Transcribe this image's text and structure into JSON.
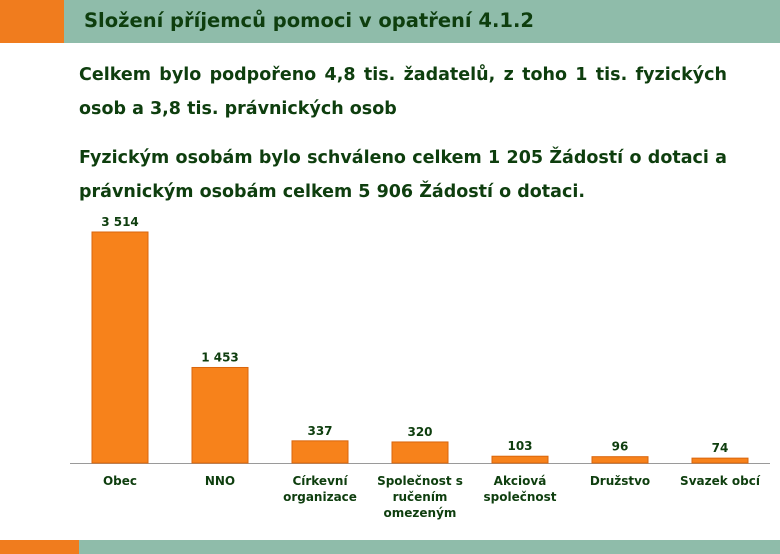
{
  "slide": {
    "title": "Složení příjemců pomoci v opatření 4.1.2",
    "paragraph1": "Celkem bylo podpořeno 4,8 tis. žadatelů, z toho 1 tis. fyzických osob a 3,8 tis. právnických osob",
    "paragraph2": "Fyzickým osobám bylo schváleno celkem 1 205 Žádostí o dotaci a právnickým osobám celkem 5 906 Žádostí o dotaci."
  },
  "colors": {
    "bar": "#f7821b",
    "bar_edge": "#d9660c",
    "text": "#0e3e0e",
    "header_green": "#8fbcaa",
    "header_orange": "#f07c1e"
  },
  "chart_data": {
    "type": "bar",
    "categories": [
      [
        "Obec"
      ],
      [
        "NNO"
      ],
      [
        "Církevní",
        "organizace"
      ],
      [
        "Společnost s",
        "ručením",
        "omezeným"
      ],
      [
        "Akciová",
        "společnost"
      ],
      [
        "Družstvo"
      ],
      [
        "Svazek obcí"
      ]
    ],
    "values": [
      3514,
      1453,
      337,
      320,
      103,
      96,
      74
    ],
    "value_labels": [
      "3 514",
      "1 453",
      "337",
      "320",
      "103",
      "96",
      "74"
    ],
    "ylim": [
      0,
      3514
    ],
    "grid": false,
    "legend": "none"
  }
}
